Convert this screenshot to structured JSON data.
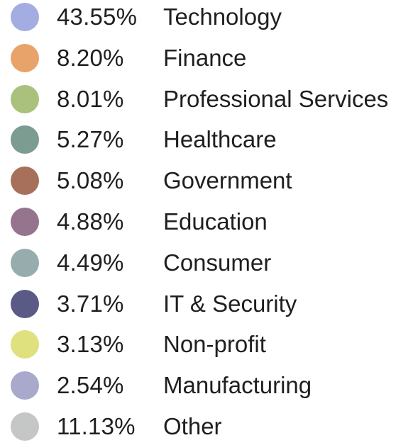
{
  "chart_data": {
    "type": "pie",
    "legend_placement": "full-figure legend list",
    "slices": [
      {
        "label": "Technology",
        "value": 43.55,
        "value_label": "43.55%",
        "color": "#a3ade2"
      },
      {
        "label": "Finance",
        "value": 8.2,
        "value_label": "8.20%",
        "color": "#e8a36a"
      },
      {
        "label": "Professional Services",
        "value": 8.01,
        "value_label": "8.01%",
        "color": "#a9c17c"
      },
      {
        "label": "Healthcare",
        "value": 5.27,
        "value_label": "5.27%",
        "color": "#7c9c91"
      },
      {
        "label": "Government",
        "value": 5.08,
        "value_label": "5.08%",
        "color": "#a7705a"
      },
      {
        "label": "Education",
        "value": 4.88,
        "value_label": "4.88%",
        "color": "#97748d"
      },
      {
        "label": "Consumer",
        "value": 4.49,
        "value_label": "4.49%",
        "color": "#97adad"
      },
      {
        "label": "IT & Security",
        "value": 3.71,
        "value_label": "3.71%",
        "color": "#5b5a87"
      },
      {
        "label": "Non-profit",
        "value": 3.13,
        "value_label": "3.13%",
        "color": "#dfe07e"
      },
      {
        "label": "Manufacturing",
        "value": 2.54,
        "value_label": "2.54%",
        "color": "#a9a9cb"
      },
      {
        "label": "Other",
        "value": 11.13,
        "value_label": "11.13%",
        "color": "#c5c6c6"
      }
    ]
  }
}
